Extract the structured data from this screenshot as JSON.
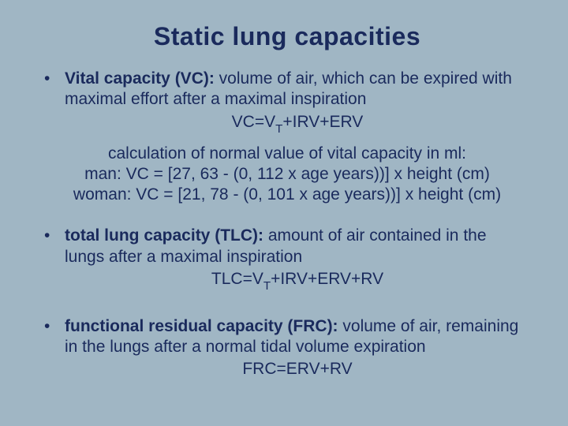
{
  "colors": {
    "background": "#a0b6c4",
    "text": "#1a2a5c"
  },
  "typography": {
    "title_fontsize": 32,
    "body_fontsize": 21,
    "font_family": "Arial"
  },
  "title": "Static lung capacities",
  "bullets": [
    {
      "term": "Vital capacity (VC):",
      "definition": " volume of air, which can be expired with maximal effort after a maximal inspiration",
      "formula_pre": "VC=V",
      "formula_sub": "T",
      "formula_post": "+IRV+ERV"
    },
    {
      "term": "total lung capacity (TLC):",
      "definition": " amount of air contained in the lungs after a maximal inspiration",
      "formula_pre": "TLC=V",
      "formula_sub": "T",
      "formula_post": "+IRV+ERV+RV"
    },
    {
      "term": "functional residual capacity (FRC):",
      "definition": " volume of air, remaining in the lungs after a normal tidal volume expiration",
      "formula_pre": "FRC=ERV+RV",
      "formula_sub": "",
      "formula_post": ""
    }
  ],
  "calc": {
    "heading": "calculation of normal value of vital capacity in ml:",
    "man": "man: VC = [27, 63 - (0, 112 x age years))] x height (cm)",
    "woman": "woman: VC = [21, 78 - (0, 101 x age years))] x height (cm)"
  },
  "bullet_char": "•"
}
